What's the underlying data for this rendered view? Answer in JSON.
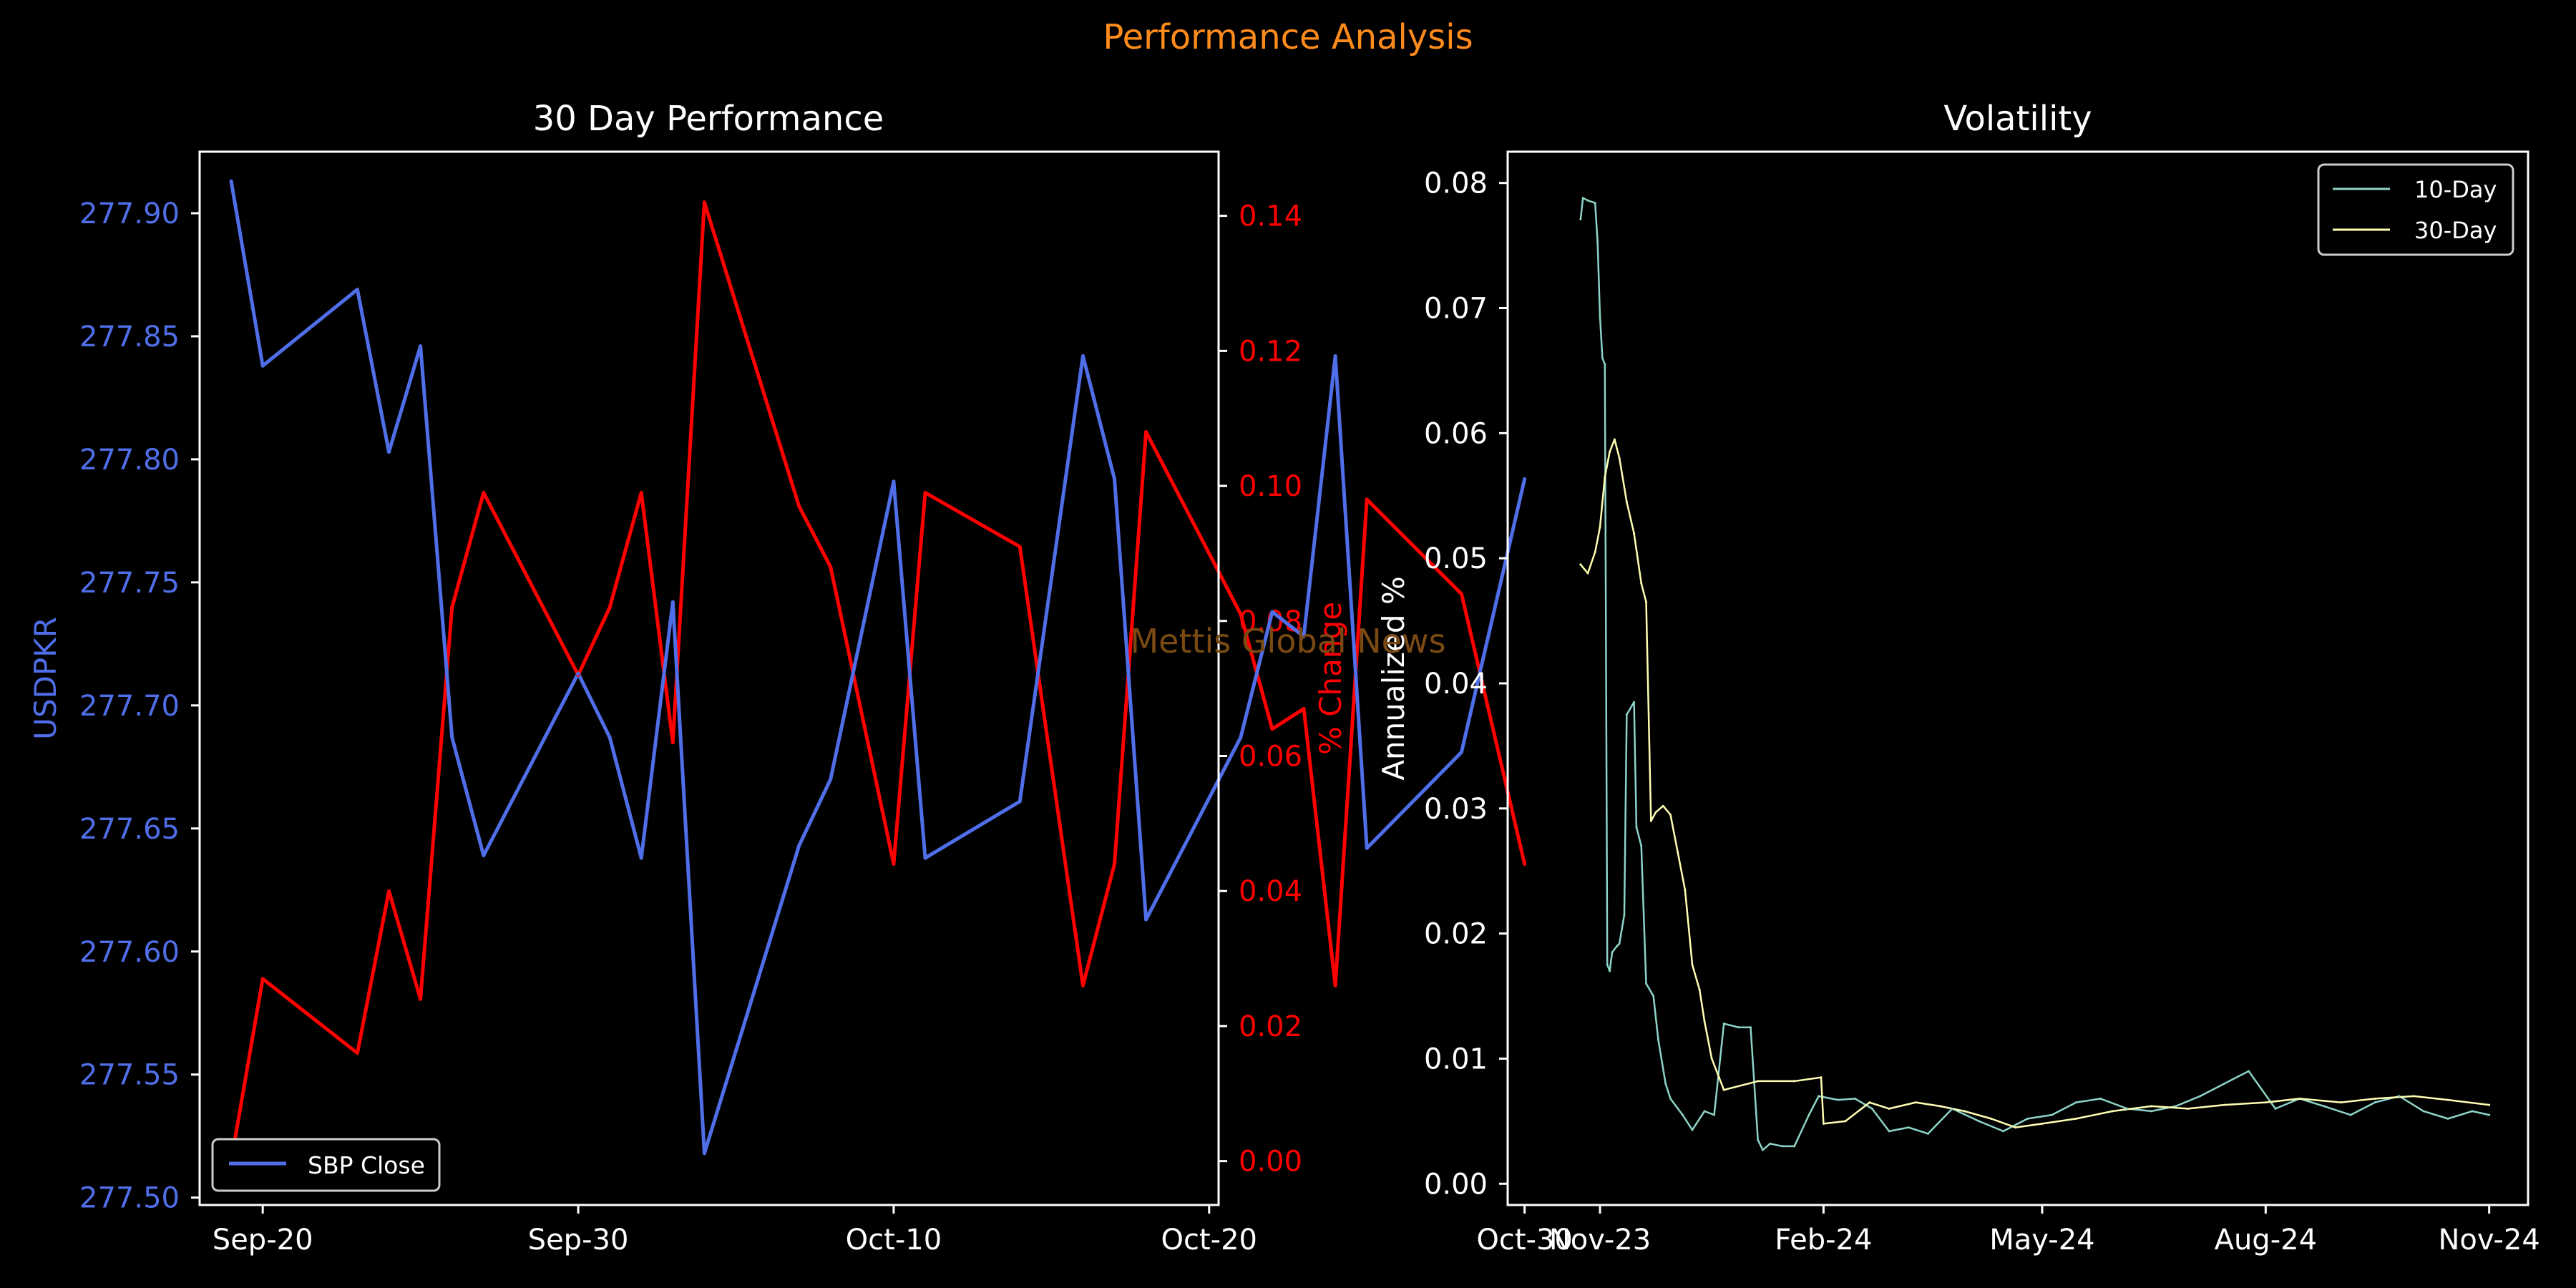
{
  "suptitle": "Performance Analysis",
  "watermark": "Mettis Global News",
  "colors": {
    "background": "#000000",
    "suptitle": "#ff8c1a",
    "close_line": "#4f6ee8",
    "pct_line": "#ff0000",
    "vol10_line": "#8dd3c7",
    "vol30_line": "#ffffb3",
    "axes": "#ffffff",
    "watermark": "#7a4a12"
  },
  "chart_data": [
    {
      "type": "line",
      "title": "30 Day Performance",
      "ylabel": "USDPKR",
      "ylabel_right": "% Change",
      "x_ticks": [
        "Sep-20",
        "Sep-30",
        "Oct-10",
        "Oct-20",
        "Oct-30"
      ],
      "y_ticks": [
        "277.50",
        "277.55",
        "277.60",
        "277.65",
        "277.70",
        "277.75",
        "277.80",
        "277.85",
        "277.90"
      ],
      "y2_ticks": [
        "0.00",
        "0.02",
        "0.04",
        "0.06",
        "0.08",
        "0.10",
        "0.12",
        "0.14"
      ],
      "ylim": [
        277.497,
        277.925
      ],
      "y2lim": [
        -0.0065,
        0.1495
      ],
      "xlim_days_from_sep_20": [
        -2.0,
        30.3
      ],
      "legend": {
        "placement": "lower-left",
        "entries": [
          "SBP Close"
        ]
      },
      "series": [
        {
          "name": "SBP Close",
          "axis": "left",
          "x": [
            "2024-09-19",
            "2024-09-20",
            "2024-09-23",
            "2024-09-24",
            "2024-09-25",
            "2024-09-26",
            "2024-09-27",
            "2024-09-30",
            "2024-10-01",
            "2024-10-02",
            "2024-10-03",
            "2024-10-04",
            "2024-10-07",
            "2024-10-08",
            "2024-10-10",
            "2024-10-11",
            "2024-10-14",
            "2024-10-16",
            "2024-10-17",
            "2024-10-18",
            "2024-10-21",
            "2024-10-22",
            "2024-10-23",
            "2024-10-24",
            "2024-10-25",
            "2024-10-28",
            "2024-10-30"
          ],
          "values": [
            277.913,
            277.838,
            277.869,
            277.803,
            277.846,
            277.687,
            277.639,
            277.713,
            277.687,
            277.638,
            277.742,
            277.518,
            277.643,
            277.67,
            277.791,
            277.638,
            277.661,
            277.842,
            277.792,
            277.613,
            277.687,
            277.738,
            277.728,
            277.842,
            277.642,
            277.681,
            277.792
          ]
        },
        {
          "name": "% Change",
          "axis": "right",
          "x": [
            "2024-09-19",
            "2024-09-20",
            "2024-09-23",
            "2024-09-24",
            "2024-09-25",
            "2024-09-26",
            "2024-09-27",
            "2024-09-30",
            "2024-10-01",
            "2024-10-02",
            "2024-10-03",
            "2024-10-04",
            "2024-10-07",
            "2024-10-08",
            "2024-10-10",
            "2024-10-11",
            "2024-10-14",
            "2024-10-16",
            "2024-10-17",
            "2024-10-18",
            "2024-10-21",
            "2024-10-22",
            "2024-10-23",
            "2024-10-24",
            "2024-10-25",
            "2024-10-28",
            "2024-10-30"
          ],
          "values": [
            0.0,
            0.027,
            0.016,
            0.04,
            0.024,
            0.082,
            0.099,
            0.072,
            0.082,
            0.099,
            0.062,
            0.142,
            0.097,
            0.088,
            0.044,
            0.099,
            0.091,
            0.026,
            0.044,
            0.108,
            0.081,
            0.064,
            0.067,
            0.026,
            0.098,
            0.084,
            0.044
          ]
        }
      ]
    },
    {
      "type": "line",
      "title": "Volatility",
      "ylabel": "Annualized %",
      "x_ticks": [
        "Nov-23",
        "Feb-24",
        "May-24",
        "Aug-24",
        "Nov-24"
      ],
      "y_ticks": [
        "0.00",
        "0.01",
        "0.02",
        "0.03",
        "0.04",
        "0.05",
        "0.06",
        "0.07",
        "0.08"
      ],
      "ylim": [
        -0.0017,
        0.0825
      ],
      "xlim_days_from_nov_1_2023": [
        -38.0,
        382.0
      ],
      "legend": {
        "placement": "top-right",
        "entries": [
          "10-Day",
          "30-Day"
        ]
      },
      "series": [
        {
          "name": "10-Day",
          "x": [
            "2023-10-24",
            "2023-10-25",
            "2023-10-27",
            "2023-10-30",
            "2023-10-31",
            "2023-11-01",
            "2023-11-02",
            "2023-11-03",
            "2023-11-04",
            "2023-11-05",
            "2023-11-06",
            "2023-11-08",
            "2023-11-09",
            "2023-11-11",
            "2023-11-12",
            "2023-11-15",
            "2023-11-16",
            "2023-11-18",
            "2023-11-20",
            "2023-11-23",
            "2023-11-25",
            "2023-11-28",
            "2023-11-30",
            "2023-12-05",
            "2023-12-09",
            "2023-12-14",
            "2023-12-18",
            "2023-12-22",
            "2023-12-28",
            "2024-01-02",
            "2024-01-05",
            "2024-01-07",
            "2024-01-10",
            "2024-01-15",
            "2024-01-20",
            "2024-01-26",
            "2024-01-30",
            "2024-02-07",
            "2024-02-14",
            "2024-02-21",
            "2024-02-28",
            "2024-03-07",
            "2024-03-15",
            "2024-03-25",
            "2024-04-05",
            "2024-04-15",
            "2024-04-25",
            "2024-05-05",
            "2024-05-15",
            "2024-05-25",
            "2024-06-05",
            "2024-06-15",
            "2024-06-25",
            "2024-07-05",
            "2024-07-15",
            "2024-07-25",
            "2024-08-05",
            "2024-08-15",
            "2024-08-25",
            "2024-09-05",
            "2024-09-15",
            "2024-09-25",
            "2024-10-05",
            "2024-10-15",
            "2024-10-25",
            "2024-11-01"
          ],
          "values": [
            0.0771,
            0.0788,
            0.0786,
            0.0784,
            0.0753,
            0.0693,
            0.066,
            0.0655,
            0.0175,
            0.017,
            0.0185,
            0.019,
            0.0192,
            0.0215,
            0.0375,
            0.0385,
            0.0285,
            0.027,
            0.016,
            0.015,
            0.0115,
            0.008,
            0.0068,
            0.0055,
            0.0043,
            0.0058,
            0.0055,
            0.0128,
            0.0125,
            0.0125,
            0.0035,
            0.0027,
            0.0032,
            0.003,
            0.003,
            0.0055,
            0.007,
            0.0067,
            0.0068,
            0.006,
            0.0042,
            0.0045,
            0.004,
            0.006,
            0.005,
            0.0042,
            0.0052,
            0.0055,
            0.0065,
            0.0068,
            0.006,
            0.0058,
            0.0062,
            0.007,
            0.008,
            0.009,
            0.006,
            0.0068,
            0.0062,
            0.0055,
            0.0065,
            0.007,
            0.0058,
            0.0052,
            0.0058,
            0.0055
          ]
        },
        {
          "name": "30-Day",
          "x": [
            "2023-10-24",
            "2023-10-27",
            "2023-10-30",
            "2023-11-01",
            "2023-11-03",
            "2023-11-05",
            "2023-11-07",
            "2023-11-09",
            "2023-11-12",
            "2023-11-15",
            "2023-11-18",
            "2023-11-20",
            "2023-11-22",
            "2023-11-24",
            "2023-11-27",
            "2023-11-30",
            "2023-12-03",
            "2023-12-06",
            "2023-12-09",
            "2023-12-12",
            "2023-12-14",
            "2023-12-17",
            "2023-12-20",
            "2023-12-22",
            "2024-01-05",
            "2024-01-20",
            "2024-01-31",
            "2024-02-01",
            "2024-02-10",
            "2024-02-20",
            "2024-02-28",
            "2024-03-10",
            "2024-03-20",
            "2024-03-30",
            "2024-04-10",
            "2024-04-20",
            "2024-05-01",
            "2024-05-15",
            "2024-05-30",
            "2024-06-15",
            "2024-06-30",
            "2024-07-15",
            "2024-08-01",
            "2024-08-15",
            "2024-09-01",
            "2024-09-15",
            "2024-10-01",
            "2024-10-15",
            "2024-11-01"
          ],
          "values": [
            0.0495,
            0.0488,
            0.0505,
            0.0525,
            0.0565,
            0.0585,
            0.0595,
            0.058,
            0.0545,
            0.052,
            0.048,
            0.0465,
            0.029,
            0.0297,
            0.0302,
            0.0295,
            0.0265,
            0.0235,
            0.0175,
            0.0155,
            0.013,
            0.01,
            0.0085,
            0.0075,
            0.0082,
            0.0082,
            0.0085,
            0.0048,
            0.005,
            0.0065,
            0.006,
            0.0065,
            0.0062,
            0.0058,
            0.0052,
            0.0045,
            0.0048,
            0.0052,
            0.0058,
            0.0062,
            0.006,
            0.0063,
            0.0065,
            0.0068,
            0.0065,
            0.0068,
            0.007,
            0.0067,
            0.0063
          ]
        }
      ]
    }
  ]
}
